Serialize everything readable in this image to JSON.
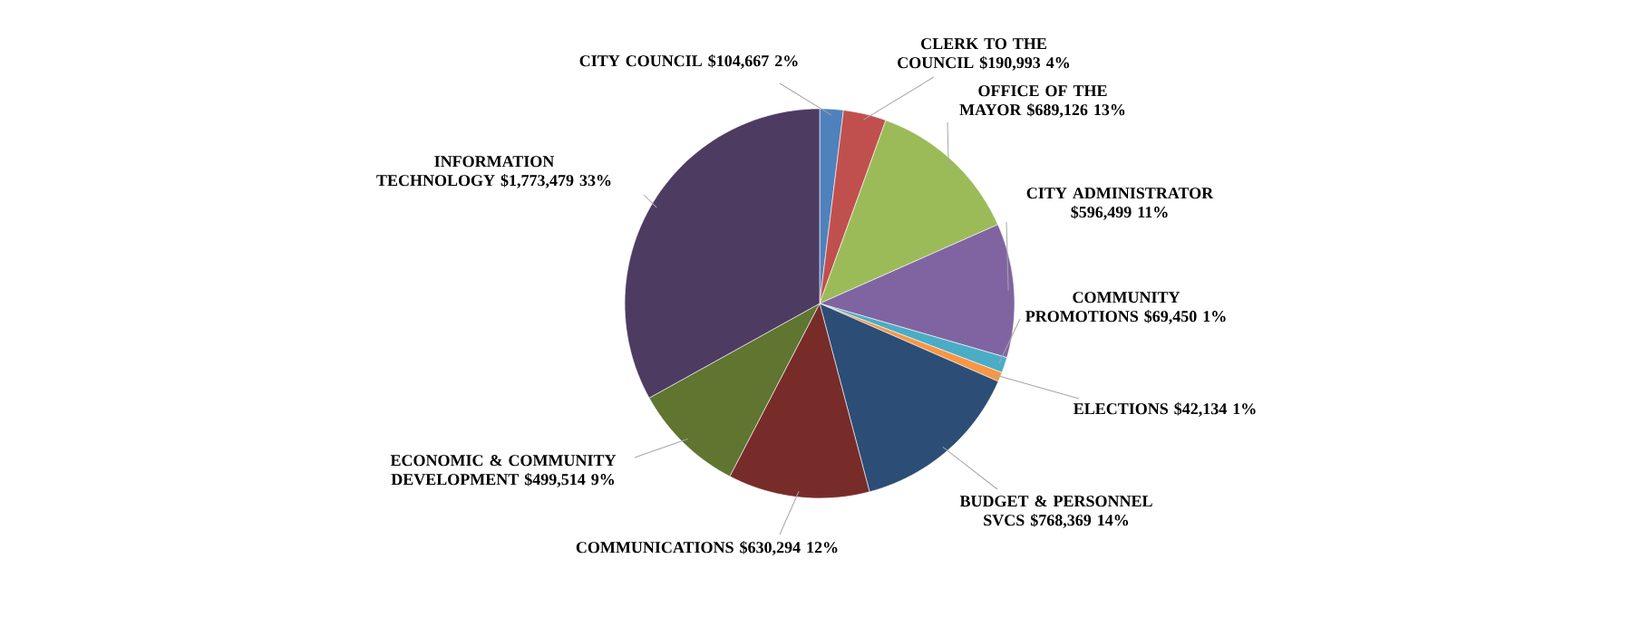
{
  "chart_data": {
    "type": "pie",
    "categories": [
      "CITY COUNCIL",
      "CLERK TO THE COUNCIL",
      "OFFICE OF THE MAYOR",
      "CITY ADMINISTRATOR",
      "COMMUNITY PROMOTIONS",
      "ELECTIONS",
      "BUDGET & PERSONNEL SVCS",
      "COMMUNICATIONS",
      "ECONOMIC & COMMUNITY DEVELOPMENT",
      "INFORMATION TECHNOLOGY"
    ],
    "values": [
      104667,
      190993,
      689126,
      596499,
      69450,
      42134,
      768369,
      630294,
      499514,
      1773479
    ],
    "value_labels": [
      "$104,667 2%",
      "$190,993 4%",
      "$689,126 13%",
      "$596,499 11%",
      "$69,450 1%",
      "$42,134 1%",
      "$768,369 14%",
      "$630,294 12%",
      "$499,514 9%",
      "$1,773,479 33%"
    ],
    "colors": [
      "#4f81bd",
      "#c0504d",
      "#9bbb59",
      "#8064a2",
      "#4bacc6",
      "#f79646",
      "#2c4d75",
      "#772c2a",
      "#5f7530",
      "#4d3b62"
    ]
  }
}
